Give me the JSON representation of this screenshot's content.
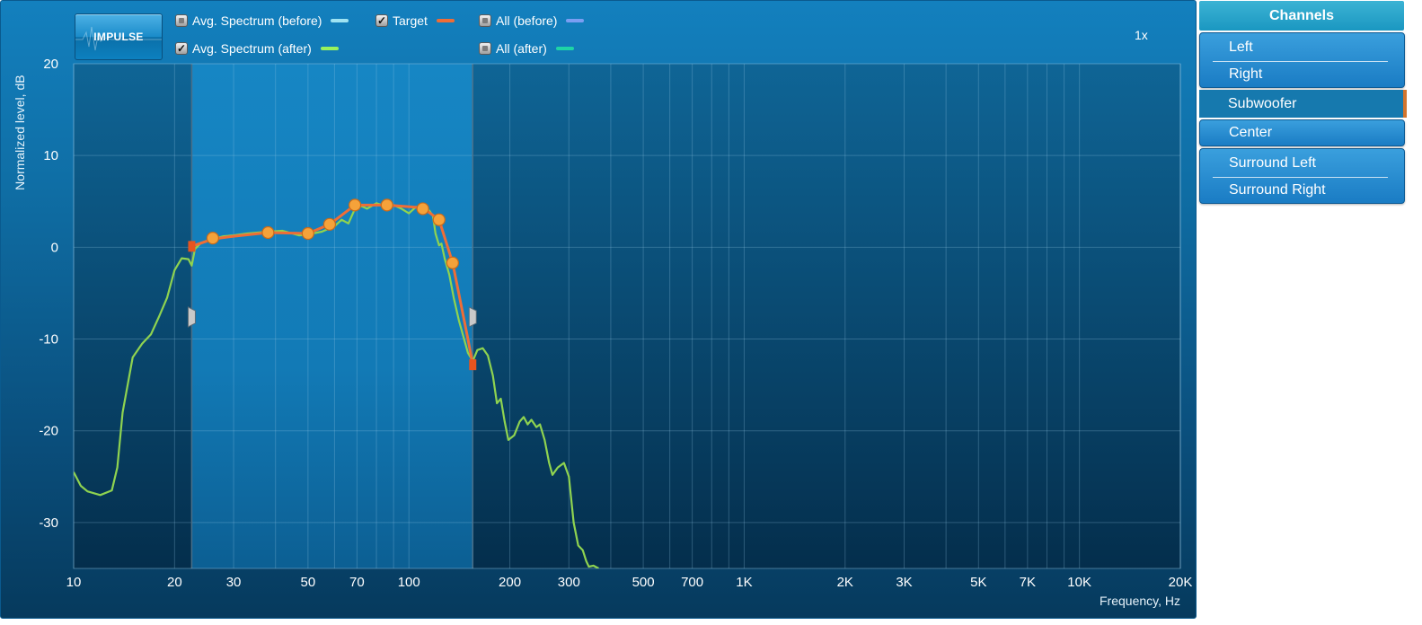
{
  "impulse_button": {
    "label": "IMPULSE"
  },
  "legend": [
    {
      "label": "Avg. Spectrum (before)",
      "checked": false,
      "color": "#9fe3f2"
    },
    {
      "label": "Target",
      "checked": true,
      "color": "#ef6d36"
    },
    {
      "label": "All (before)",
      "checked": false,
      "color": "#7a9ef2"
    },
    {
      "label": "Avg. Spectrum (after)",
      "checked": true,
      "color": "#99f25c"
    },
    {
      "label": "All (after)",
      "checked": false,
      "color": "#1ed4a6"
    }
  ],
  "zoom": "1x",
  "channels": {
    "header": "Channels",
    "items": [
      "Left",
      "Right",
      "Subwoofer",
      "Center",
      "Surround Left",
      "Surround Right"
    ],
    "selected": "Subwoofer"
  },
  "chart_data": {
    "type": "line",
    "ylabel": "Normalized level, dB",
    "xlabel": "Frequency, Hz",
    "x_scale": "log",
    "xlim": [
      10,
      20000
    ],
    "ylim": [
      -35,
      20
    ],
    "x_ticks": [
      {
        "value": 10,
        "label": "10"
      },
      {
        "value": 20,
        "label": "20"
      },
      {
        "value": 30,
        "label": "30"
      },
      {
        "value": 50,
        "label": "50"
      },
      {
        "value": 70,
        "label": "70"
      },
      {
        "value": 100,
        "label": "100"
      },
      {
        "value": 200,
        "label": "200"
      },
      {
        "value": 300,
        "label": "300"
      },
      {
        "value": 500,
        "label": "500"
      },
      {
        "value": 700,
        "label": "700"
      },
      {
        "value": 1000,
        "label": "1K"
      },
      {
        "value": 2000,
        "label": "2K"
      },
      {
        "value": 3000,
        "label": "3K"
      },
      {
        "value": 5000,
        "label": "5K"
      },
      {
        "value": 7000,
        "label": "7K"
      },
      {
        "value": 10000,
        "label": "10K"
      },
      {
        "value": 20000,
        "label": "20K"
      }
    ],
    "y_ticks": [
      {
        "value": 20,
        "label": "20"
      },
      {
        "value": 10,
        "label": "10"
      },
      {
        "value": 0,
        "label": "0"
      },
      {
        "value": -10,
        "label": "-10"
      },
      {
        "value": -20,
        "label": "-20"
      },
      {
        "value": -30,
        "label": "-30"
      }
    ],
    "grid": true,
    "highlight_band": [
      22.5,
      155
    ],
    "series": [
      {
        "name": "Avg. Spectrum (after)",
        "color": "#8fd350",
        "points": [
          [
            10,
            -24.5
          ],
          [
            10.5,
            -26
          ],
          [
            11,
            -26.6
          ],
          [
            12,
            -27
          ],
          [
            13,
            -26.5
          ],
          [
            13.5,
            -24
          ],
          [
            14,
            -18
          ],
          [
            15,
            -12
          ],
          [
            16,
            -10.5
          ],
          [
            17,
            -9.5
          ],
          [
            18,
            -7.5
          ],
          [
            19,
            -5.5
          ],
          [
            20,
            -2.5
          ],
          [
            21,
            -1.2
          ],
          [
            22,
            -1.3
          ],
          [
            22.5,
            -2
          ],
          [
            23,
            -0.2
          ],
          [
            24,
            0.5
          ],
          [
            26,
            0.9
          ],
          [
            28,
            1.2
          ],
          [
            30,
            1.3
          ],
          [
            33,
            1.5
          ],
          [
            38,
            1.7
          ],
          [
            42,
            1.8
          ],
          [
            47,
            1.3
          ],
          [
            50,
            1.4
          ],
          [
            55,
            1.7
          ],
          [
            60,
            2.3
          ],
          [
            63,
            3
          ],
          [
            66,
            2.6
          ],
          [
            70,
            4.7
          ],
          [
            75,
            4.2
          ],
          [
            80,
            4.8
          ],
          [
            85,
            4.5
          ],
          [
            90,
            4.6
          ],
          [
            95,
            4.2
          ],
          [
            100,
            3.7
          ],
          [
            105,
            4.4
          ],
          [
            110,
            4
          ],
          [
            115,
            4
          ],
          [
            118,
            3.4
          ],
          [
            120,
            1.5
          ],
          [
            123,
            0.2
          ],
          [
            125,
            0.4
          ],
          [
            128,
            -1.3
          ],
          [
            132,
            -3
          ],
          [
            136,
            -5.5
          ],
          [
            141,
            -8
          ],
          [
            146,
            -10
          ],
          [
            150,
            -11.5
          ],
          [
            155,
            -12.4
          ],
          [
            160,
            -11.2
          ],
          [
            166,
            -11
          ],
          [
            172,
            -11.8
          ],
          [
            178,
            -14
          ],
          [
            183,
            -17
          ],
          [
            188,
            -16.5
          ],
          [
            193,
            -19
          ],
          [
            198,
            -21
          ],
          [
            206,
            -20.5
          ],
          [
            214,
            -19
          ],
          [
            220,
            -18.5
          ],
          [
            226,
            -19.3
          ],
          [
            232,
            -18.8
          ],
          [
            240,
            -19.6
          ],
          [
            246,
            -19.3
          ],
          [
            254,
            -21
          ],
          [
            262,
            -23.5
          ],
          [
            268,
            -24.8
          ],
          [
            278,
            -24
          ],
          [
            290,
            -23.5
          ],
          [
            300,
            -25
          ],
          [
            310,
            -30
          ],
          [
            320,
            -32.5
          ],
          [
            330,
            -33
          ],
          [
            338,
            -34.2
          ],
          [
            344,
            -34.8
          ],
          [
            355,
            -34.7
          ],
          [
            368,
            -35
          ]
        ]
      },
      {
        "name": "Target",
        "color": "#ef6d36",
        "points": [
          [
            22.5,
            0.1
          ],
          [
            26,
            0.9
          ],
          [
            30,
            1.2
          ],
          [
            38,
            1.6
          ],
          [
            50,
            1.5
          ],
          [
            58,
            2.5
          ],
          [
            69,
            4.6
          ],
          [
            86,
            4.6
          ],
          [
            110,
            4.3
          ],
          [
            123,
            3
          ],
          [
            135,
            -1.7
          ],
          [
            150,
            -10
          ],
          [
            155,
            -12.8
          ]
        ]
      }
    ],
    "control_points": [
      [
        26,
        1.0
      ],
      [
        38,
        1.6
      ],
      [
        50,
        1.5
      ],
      [
        58,
        2.5
      ],
      [
        69,
        4.6
      ],
      [
        86,
        4.6
      ],
      [
        110,
        4.2
      ],
      [
        123,
        3.0
      ],
      [
        135,
        -1.7
      ]
    ],
    "endpoints": [
      [
        22.5,
        0.1
      ],
      [
        155,
        -12.8
      ]
    ]
  }
}
